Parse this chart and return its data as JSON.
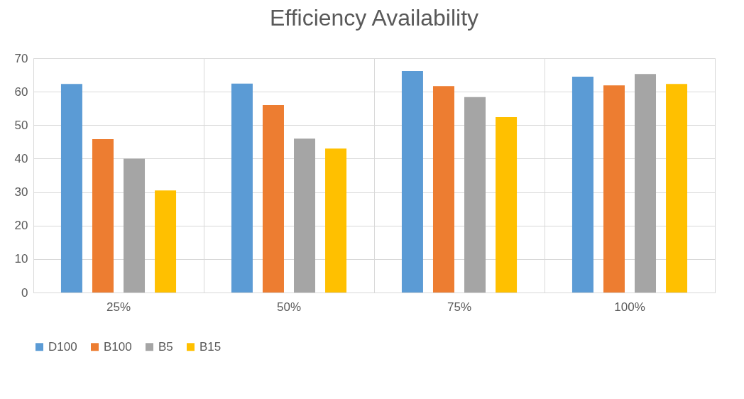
{
  "chart_data": {
    "type": "bar",
    "title": "Efficiency Availability",
    "categories": [
      "25%",
      "50%",
      "75%",
      "100%"
    ],
    "series": [
      {
        "name": "D100",
        "color": "#5b9bd5",
        "values": [
          62.3,
          62.4,
          66.2,
          64.5
        ]
      },
      {
        "name": "B100",
        "color": "#ed7d31",
        "values": [
          45.8,
          56,
          61.7,
          61.9
        ]
      },
      {
        "name": "B5",
        "color": "#a5a5a5",
        "values": [
          40,
          46,
          58.4,
          65.3
        ]
      },
      {
        "name": "B15",
        "color": "#ffc000",
        "values": [
          30.5,
          43,
          52.4,
          62.3
        ]
      }
    ],
    "ylim": [
      0,
      70
    ],
    "yticks": [
      0,
      10,
      20,
      30,
      40,
      50,
      60,
      70
    ],
    "grid": true,
    "legend": "bottom"
  }
}
